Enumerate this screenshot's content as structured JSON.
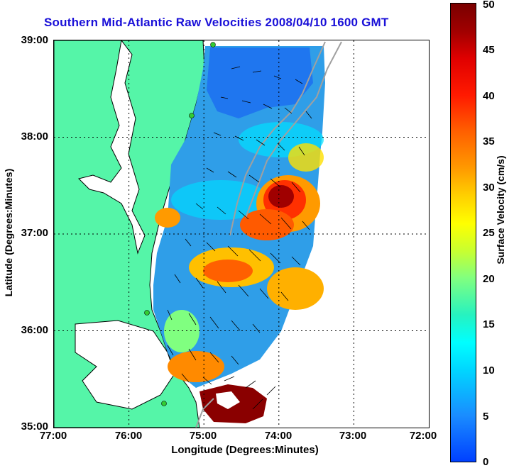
{
  "title": "Southern Mid-Atlantic Raw Velocities 2008/04/10 1600 GMT",
  "axes": {
    "x_label": "Longitude (Degrees:Minutes)",
    "y_label": "Latitude (Degrees:Minutes)",
    "x_ticks": [
      "77:00",
      "76:00",
      "75:00",
      "74:00",
      "73:00",
      "72:00"
    ],
    "y_ticks": [
      "39:00",
      "38:00",
      "37:00",
      "36:00",
      "35:00"
    ],
    "x_range": [
      -77,
      -72
    ],
    "y_range": [
      35,
      39
    ],
    "grid": "dotted"
  },
  "colorbar": {
    "label": "Surface Velocity (cm/s)",
    "ticks": [
      "0",
      "5",
      "10",
      "15",
      "20",
      "25",
      "30",
      "35",
      "40",
      "45",
      "50"
    ],
    "range": [
      0,
      50
    ]
  },
  "colors": {
    "title": "#1a10d8",
    "land": "#55f5a8",
    "coast": "#000000",
    "bathymetry": "#a0a0a0",
    "station": "#33cc33"
  }
}
